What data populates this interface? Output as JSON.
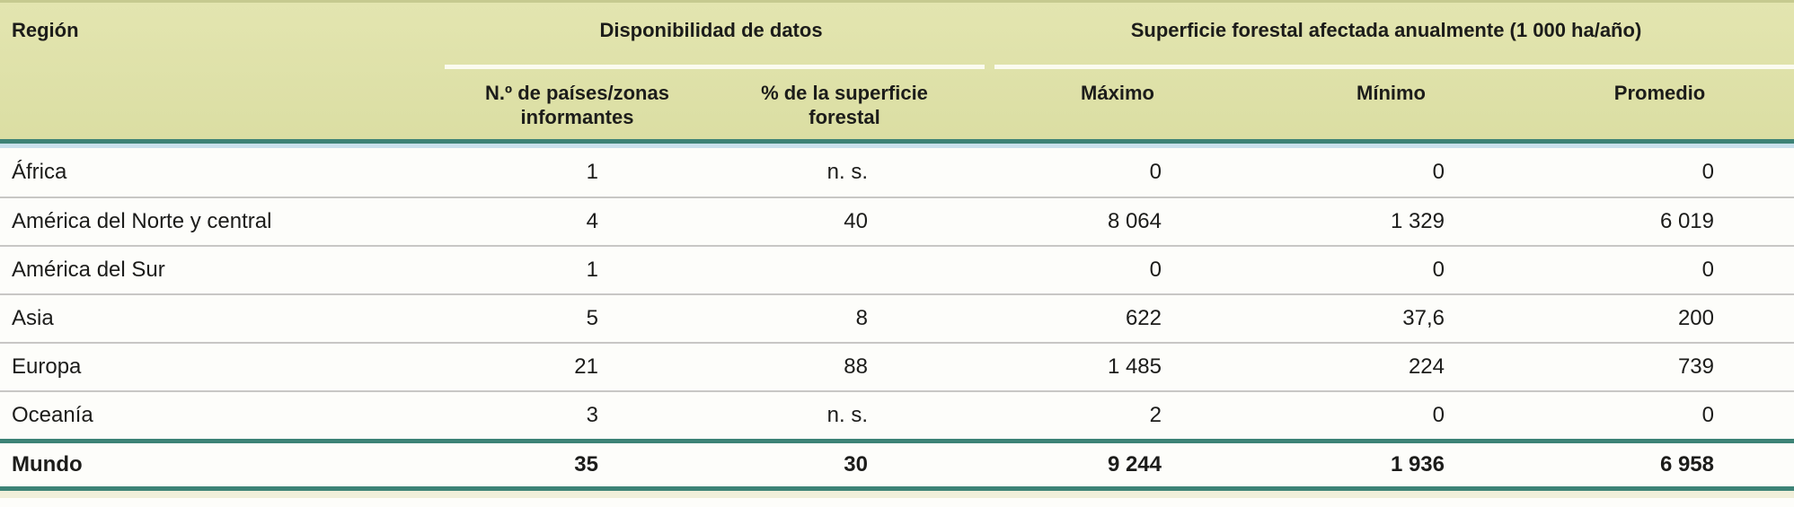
{
  "table": {
    "header": {
      "region_label": "Región",
      "groups": [
        {
          "label": "Disponibilidad de datos",
          "subcolumns": [
            "N.º de países/zonas\ninformantes",
            "% de la superficie\nforestal"
          ]
        },
        {
          "label": "Superficie forestal afectada anualmente (1 000 ha/año)",
          "subcolumns": [
            "Máximo",
            "Mínimo",
            "Promedio"
          ]
        }
      ]
    },
    "rows": [
      {
        "region": "África",
        "paises": "1",
        "superficie": "n. s.",
        "maximo": "0",
        "minimo": "0",
        "promedio": "0"
      },
      {
        "region": "América del Norte y central",
        "paises": "4",
        "superficie": "40",
        "maximo": "8 064",
        "minimo": "1 329",
        "promedio": "6 019"
      },
      {
        "region": "América del Sur",
        "paises": "1",
        "superficie": "",
        "maximo": "0",
        "minimo": "0",
        "promedio": "0"
      },
      {
        "region": "Asia",
        "paises": "5",
        "superficie": "8",
        "maximo": "622",
        "minimo": "37,6",
        "promedio": "200"
      },
      {
        "region": "Europa",
        "paises": "21",
        "superficie": "88",
        "maximo": "1 485",
        "minimo": "224",
        "promedio": "739"
      },
      {
        "region": "Oceanía",
        "paises": "3",
        "superficie": "n. s.",
        "maximo": "2",
        "minimo": "0",
        "promedio": "0"
      }
    ],
    "total": {
      "region": "Mundo",
      "paises": "35",
      "superficie": "30",
      "maximo": "9 244",
      "minimo": "1 936",
      "promedio": "6 958"
    }
  },
  "colors": {
    "header_bg": "#dfe2a9",
    "header_top_line": "#c6ca90",
    "header_divider": "#fbfbef",
    "accent_teal": "#3d8376",
    "accent_blue": "#c9e1ec",
    "row_separator": "#c8c7c5",
    "footer_strip": "#f0efda",
    "text": "#1c1c1a"
  }
}
